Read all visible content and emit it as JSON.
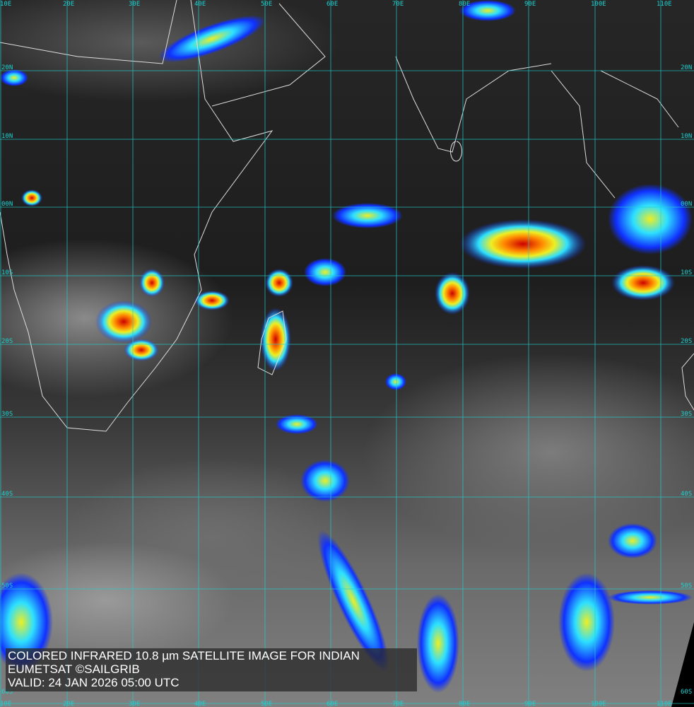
{
  "caption": {
    "line1": "COLORED INFRARED 10.8 µm SATELLITE IMAGE FOR INDIAN",
    "line2": "EUMETSAT ©SAILGRIB",
    "line3": "VALID:  24 JAN 2026 05:00 UTC"
  },
  "longitude_labels": [
    "10E",
    "20E",
    "30E",
    "40E",
    "50E",
    "60E",
    "70E",
    "80E",
    "90E",
    "100E",
    "110E"
  ],
  "latitude_labels": [
    "20N",
    "10N",
    "00N",
    "10S",
    "20S",
    "30S",
    "40S",
    "50S",
    "60S"
  ],
  "colors": {
    "grid": "#1fd0d0",
    "coast": "#e0e0e0",
    "cold_blue": "#1030ff",
    "cyan": "#20e0ff",
    "yellow": "#f0e020",
    "red": "#e01010"
  }
}
